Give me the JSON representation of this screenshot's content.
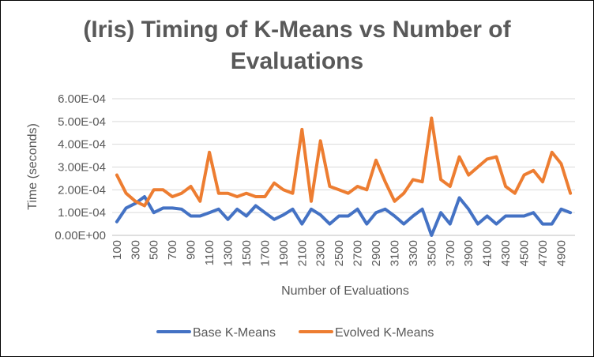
{
  "chart_data": {
    "type": "line",
    "title_line1": "(Iris) Timing of K-Means vs Number of",
    "title_line2": "Evaluations",
    "xlabel": "Number of Evaluations",
    "ylabel": "Time (seconds)",
    "ylim": [
      0,
      0.0006
    ],
    "y_ticks": [
      "0.00E+00",
      "1.00E-04",
      "2.00E-04",
      "3.00E-04",
      "4.00E-04",
      "5.00E-04",
      "6.00E-04"
    ],
    "x_tick_labels": [
      "100",
      "300",
      "500",
      "700",
      "900",
      "1100",
      "1300",
      "1500",
      "1700",
      "1900",
      "2100",
      "2300",
      "2500",
      "2700",
      "2900",
      "3100",
      "3300",
      "3500",
      "3700",
      "3900",
      "4100",
      "4300",
      "4500",
      "4700",
      "4900"
    ],
    "x": [
      100,
      200,
      300,
      400,
      500,
      600,
      700,
      800,
      900,
      1000,
      1100,
      1200,
      1300,
      1400,
      1500,
      1600,
      1700,
      1800,
      1900,
      2000,
      2100,
      2200,
      2300,
      2400,
      2500,
      2600,
      2700,
      2800,
      2900,
      3000,
      3100,
      3200,
      3300,
      3400,
      3500,
      3600,
      3700,
      3800,
      3900,
      4000,
      4100,
      4200,
      4300,
      4400,
      4500,
      4600,
      4700,
      4800,
      4900,
      5000
    ],
    "legend_position": "bottom",
    "grid": true,
    "series": [
      {
        "name": "Base K-Means",
        "color": "#4472C4",
        "values": [
          6e-05,
          0.00012,
          0.00014,
          0.00017,
          0.0001,
          0.00012,
          0.00012,
          0.000115,
          8.5e-05,
          8.5e-05,
          0.0001,
          0.000115,
          7e-05,
          0.000115,
          8.5e-05,
          0.00013,
          0.0001,
          7e-05,
          9e-05,
          0.000115,
          5e-05,
          0.000115,
          9e-05,
          5e-05,
          8.5e-05,
          8.5e-05,
          0.000115,
          5e-05,
          0.0001,
          0.000115,
          8.5e-05,
          5e-05,
          8.5e-05,
          0.000115,
          0.0,
          0.0001,
          5e-05,
          0.000165,
          0.000115,
          5e-05,
          8.5e-05,
          5e-05,
          8.5e-05,
          8.5e-05,
          8.5e-05,
          0.0001,
          5e-05,
          5e-05,
          0.000115,
          0.0001
        ]
      },
      {
        "name": "Evolved K-Means",
        "color": "#ED7D31",
        "values": [
          0.000265,
          0.000185,
          0.00015,
          0.00013,
          0.0002,
          0.0002,
          0.00017,
          0.000185,
          0.000215,
          0.00015,
          0.000365,
          0.000185,
          0.000185,
          0.00017,
          0.000185,
          0.00017,
          0.00017,
          0.00023,
          0.0002,
          0.000185,
          0.000465,
          0.00015,
          0.000415,
          0.000215,
          0.0002,
          0.000185,
          0.000215,
          0.0002,
          0.00033,
          0.000235,
          0.00015,
          0.000185,
          0.000245,
          0.000235,
          0.000515,
          0.000245,
          0.000215,
          0.000345,
          0.000265,
          0.0003,
          0.000335,
          0.000345,
          0.000215,
          0.000185,
          0.000265,
          0.000285,
          0.000235,
          0.000365,
          0.000315,
          0.000185
        ]
      }
    ]
  }
}
